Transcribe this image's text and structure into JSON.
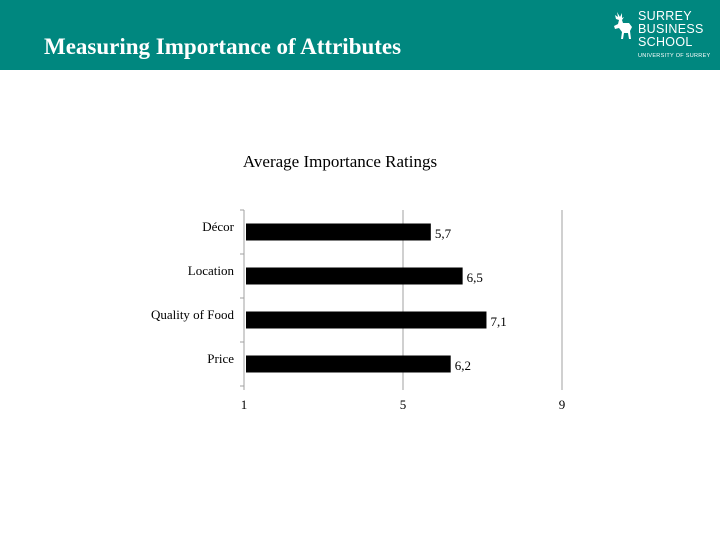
{
  "slide": {
    "title": "Measuring Importance of Attributes",
    "header_color": "#00877F"
  },
  "logo": {
    "lines": [
      "SURREY",
      "BUSINESS",
      "SCHOOL"
    ],
    "subline": "UNIVERSITY OF SURREY",
    "icon": "stag-icon"
  },
  "chart_data": {
    "type": "bar",
    "orientation": "horizontal",
    "title": "Average Importance Ratings",
    "categories": [
      "Décor",
      "Location",
      "Quality of Food",
      "Price"
    ],
    "values": [
      5.7,
      6.5,
      7.1,
      6.2
    ],
    "value_labels": [
      "5,7",
      "6,5",
      "7,1",
      "6,2"
    ],
    "xlim": [
      1,
      9
    ],
    "xticks": [
      1,
      5,
      9
    ],
    "xtick_labels": [
      "1",
      "5",
      "9"
    ],
    "grid": false,
    "bar_color": "#000000"
  }
}
